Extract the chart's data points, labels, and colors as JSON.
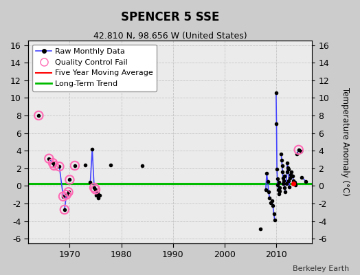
{
  "title": "SPENCER 5 SSE",
  "subtitle": "42.810 N, 98.656 W (United States)",
  "ylabel_right": "Temperature Anomaly (°C)",
  "credit": "Berkeley Earth",
  "xlim": [
    1962,
    2017
  ],
  "ylim": [
    -6.5,
    16.5
  ],
  "yticks": [
    -6,
    -4,
    -2,
    0,
    2,
    4,
    6,
    8,
    10,
    12,
    14,
    16
  ],
  "xticks": [
    1970,
    1980,
    1990,
    2000,
    2010
  ],
  "grid_color": "#bbbbbb",
  "long_term_trend_y": 0.25,
  "colors": {
    "raw_line": "#4444ff",
    "raw_dot": "#000000",
    "qc_fail": "#ff69b4",
    "five_year_ma": "#ff0000",
    "long_term_trend": "#00bb00"
  },
  "yearly_groups": {
    "1964": [
      8.0
    ],
    "1966": [
      3.1,
      2.6
    ],
    "1967": [
      2.3
    ],
    "1968": [
      2.2,
      -1.2
    ],
    "1969": [
      -2.7,
      -1.0,
      -0.7
    ],
    "1970": [
      0.7
    ],
    "1971": [
      2.3
    ],
    "1973": [
      2.4
    ],
    "1974": [
      0.4,
      4.2,
      -0.2
    ],
    "1975": [
      -0.4,
      -1.1,
      -0.8,
      -1.4,
      -1.1
    ],
    "1978": [
      2.4
    ],
    "1984": [
      2.3
    ],
    "2007": [
      -4.9
    ],
    "2008": [
      -0.4,
      1.4,
      0.5,
      -0.7,
      -1.4
    ],
    "2009": [
      -1.9,
      -1.7,
      -2.2,
      -3.2,
      -3.9
    ],
    "2010": [
      10.6,
      7.1,
      1.9,
      0.8,
      0.1,
      -0.4,
      0.4,
      -0.9,
      -0.2,
      -0.6
    ],
    "2011": [
      3.6,
      2.9,
      2.3,
      1.6,
      0.9,
      0.3,
      0.6,
      1.1,
      -0.2,
      -0.7
    ],
    "2012": [
      0.3,
      1.6,
      2.6,
      2.1,
      1.9,
      0.6,
      -0.1,
      0.9,
      1.3
    ],
    "2013": [
      1.6,
      1.1,
      0.6,
      0.4,
      0.1
    ],
    "2014": [
      3.6,
      4.1,
      3.9
    ],
    "2015": [
      1.0,
      0.5
    ]
  },
  "qc_fail_years": {
    "1964": [
      8.0
    ],
    "1966": [
      3.1,
      2.6
    ],
    "1967": [
      2.3
    ],
    "1968": [
      2.2,
      -1.2
    ],
    "1969": [
      -2.7,
      -1.0,
      -0.7
    ],
    "1970": [
      0.7
    ],
    "1971": [
      2.3
    ],
    "1974": [
      -0.2
    ],
    "1975": [
      -0.4
    ],
    "2014": [
      4.1
    ]
  },
  "five_year_ma": {
    "x": [
      2013.4
    ],
    "y": [
      0.25
    ]
  },
  "fig_facecolor": "#cccccc",
  "ax_facecolor": "#ebebeb"
}
